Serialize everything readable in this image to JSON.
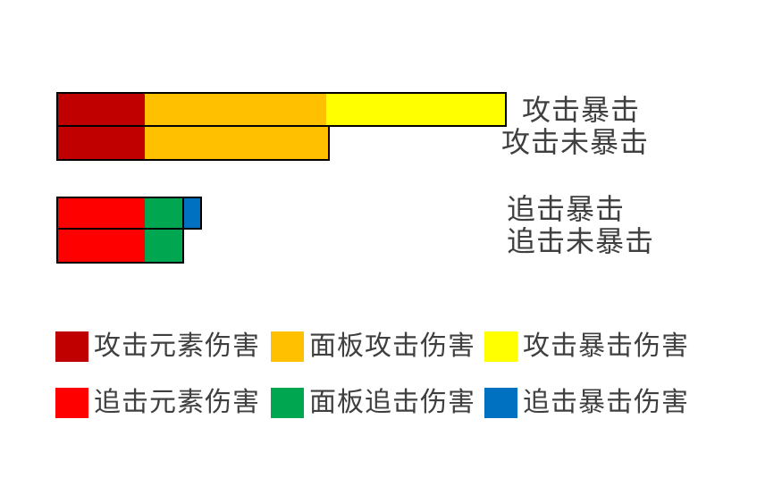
{
  "page": {
    "background": "#FFFFFF",
    "text_color": "#3F3F3F"
  },
  "chart_data": {
    "type": "bar",
    "orientation": "horizontal",
    "stacked": true,
    "title": "",
    "xlabel": "",
    "ylabel": "",
    "axis_visible": false,
    "grid": false,
    "legend_position": "bottom-left",
    "categories": [
      "攻击暴击",
      "攻击未暴击",
      "追击暴击",
      "追击未暴击"
    ],
    "series": [
      {
        "name": "攻击元素伤害",
        "color": "#C00000",
        "outlined": false,
        "values": [
          97,
          97,
          0,
          0
        ]
      },
      {
        "name": "面板攻击伤害",
        "color": "#FFC000",
        "outlined": false,
        "values": [
          203,
          205,
          0,
          0
        ]
      },
      {
        "name": "攻击暴击伤害",
        "color": "#FFFF00",
        "outlined": false,
        "values": [
          200,
          0,
          0,
          0
        ]
      },
      {
        "name": "追击元素伤害",
        "color": "#FF0000",
        "outlined": false,
        "values": [
          0,
          0,
          97,
          97
        ]
      },
      {
        "name": "面板追击伤害",
        "color": "#00A650",
        "outlined": false,
        "values": [
          0,
          0,
          42,
          42
        ]
      },
      {
        "name": "追击暴击伤害",
        "color": "#0070C0",
        "outlined": true,
        "values": [
          0,
          0,
          20,
          0
        ]
      }
    ],
    "legend": [
      {
        "label": "攻击元素伤害",
        "color": "#C00000"
      },
      {
        "label": "面板攻击伤害",
        "color": "#FFC000"
      },
      {
        "label": "攻击暴击伤害",
        "color": "#FFFF00"
      },
      {
        "label": "追击元素伤害",
        "color": "#FF0000"
      },
      {
        "label": "面板追击伤害",
        "color": "#00A650"
      },
      {
        "label": "追击暴击伤害",
        "color": "#0070C0"
      }
    ]
  }
}
